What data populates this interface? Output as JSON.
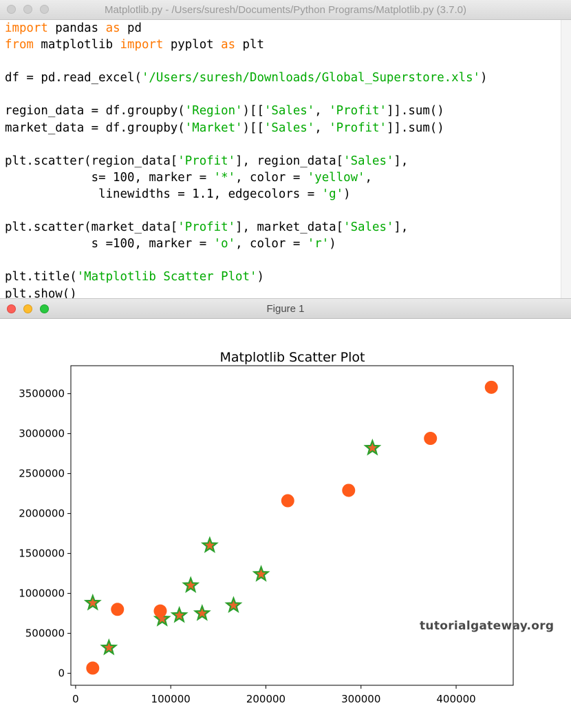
{
  "editor": {
    "title": "Matplotlib.py - /Users/suresh/Documents/Python Programs/Matplotlib.py (3.7.0)",
    "code_lines": [
      [
        {
          "t": "import",
          "c": "kw"
        },
        {
          "t": " pandas "
        },
        {
          "t": "as",
          "c": "kw"
        },
        {
          "t": " pd"
        }
      ],
      [
        {
          "t": "from",
          "c": "kw"
        },
        {
          "t": " matplotlib "
        },
        {
          "t": "import",
          "c": "kw"
        },
        {
          "t": " pyplot "
        },
        {
          "t": "as",
          "c": "kw"
        },
        {
          "t": " plt"
        }
      ],
      [],
      [
        {
          "t": "df = pd.read_excel("
        },
        {
          "t": "'/Users/suresh/Downloads/Global_Superstore.xls'",
          "c": "str"
        },
        {
          "t": ")"
        }
      ],
      [],
      [
        {
          "t": "region_data = df.groupby("
        },
        {
          "t": "'Region'",
          "c": "str"
        },
        {
          "t": ")[["
        },
        {
          "t": "'Sales'",
          "c": "str"
        },
        {
          "t": ", "
        },
        {
          "t": "'Profit'",
          "c": "str"
        },
        {
          "t": "]].sum()"
        }
      ],
      [
        {
          "t": "market_data = df.groupby("
        },
        {
          "t": "'Market'",
          "c": "str"
        },
        {
          "t": ")[["
        },
        {
          "t": "'Sales'",
          "c": "str"
        },
        {
          "t": ", "
        },
        {
          "t": "'Profit'",
          "c": "str"
        },
        {
          "t": "]].sum()"
        }
      ],
      [],
      [
        {
          "t": "plt.scatter(region_data["
        },
        {
          "t": "'Profit'",
          "c": "str"
        },
        {
          "t": "], region_data["
        },
        {
          "t": "'Sales'",
          "c": "str"
        },
        {
          "t": "],"
        }
      ],
      [
        {
          "t": "            s= 100, marker = "
        },
        {
          "t": "'*'",
          "c": "str"
        },
        {
          "t": ", color = "
        },
        {
          "t": "'yellow'",
          "c": "str"
        },
        {
          "t": ","
        }
      ],
      [
        {
          "t": "             linewidths = 1.1, edgecolors = "
        },
        {
          "t": "'g'",
          "c": "str"
        },
        {
          "t": ")"
        }
      ],
      [],
      [
        {
          "t": "plt.scatter(market_data["
        },
        {
          "t": "'Profit'",
          "c": "str"
        },
        {
          "t": "], market_data["
        },
        {
          "t": "'Sales'",
          "c": "str"
        },
        {
          "t": "],"
        }
      ],
      [
        {
          "t": "            s =100, marker = "
        },
        {
          "t": "'o'",
          "c": "str"
        },
        {
          "t": ", color = "
        },
        {
          "t": "'r'",
          "c": "str"
        },
        {
          "t": ")"
        }
      ],
      [],
      [
        {
          "t": "plt.title("
        },
        {
          "t": "'Matplotlib Scatter Plot'",
          "c": "str"
        },
        {
          "t": ")"
        }
      ],
      [
        {
          "t": "plt.show()"
        }
      ]
    ]
  },
  "figure_window": {
    "title": "Figure 1",
    "watermark": "tutorialgateway.org"
  },
  "colors": {
    "keyword": "#ff7700",
    "string": "#00aa00",
    "circle_marker": "#ff5b1a",
    "star_fill": "#e8652a",
    "star_edge": "#2ca02c"
  },
  "chart_data": {
    "type": "scatter",
    "title": "Matplotlib Scatter Plot",
    "xlabel": "",
    "ylabel": "",
    "xlim": [
      -5000,
      460000
    ],
    "ylim": [
      -150000,
      3850000
    ],
    "x_ticks": [
      0,
      100000,
      200000,
      300000,
      400000
    ],
    "x_tick_labels": [
      "0",
      "100000",
      "200000",
      "300000",
      "400000"
    ],
    "y_ticks": [
      0,
      500000,
      1000000,
      1500000,
      2000000,
      2500000,
      3000000,
      3500000
    ],
    "y_tick_labels": [
      "0",
      "500000",
      "1000000",
      "1500000",
      "2000000",
      "2500000",
      "3000000",
      "3500000"
    ],
    "grid": false,
    "series": [
      {
        "marker": "star",
        "points": [
          {
            "x": 18000,
            "y": 880000
          },
          {
            "x": 35000,
            "y": 320000
          },
          {
            "x": 91000,
            "y": 680000
          },
          {
            "x": 109000,
            "y": 725000
          },
          {
            "x": 121000,
            "y": 1100000
          },
          {
            "x": 133000,
            "y": 750000
          },
          {
            "x": 141000,
            "y": 1600000
          },
          {
            "x": 166000,
            "y": 850000
          },
          {
            "x": 195000,
            "y": 1240000
          },
          {
            "x": 312000,
            "y": 2820000
          }
        ]
      },
      {
        "marker": "circle",
        "points": [
          {
            "x": 18000,
            "y": 65000
          },
          {
            "x": 44000,
            "y": 800000
          },
          {
            "x": 89000,
            "y": 780000
          },
          {
            "x": 223000,
            "y": 2160000
          },
          {
            "x": 287000,
            "y": 2290000
          },
          {
            "x": 373000,
            "y": 2940000
          },
          {
            "x": 437000,
            "y": 3580000
          }
        ]
      }
    ]
  }
}
